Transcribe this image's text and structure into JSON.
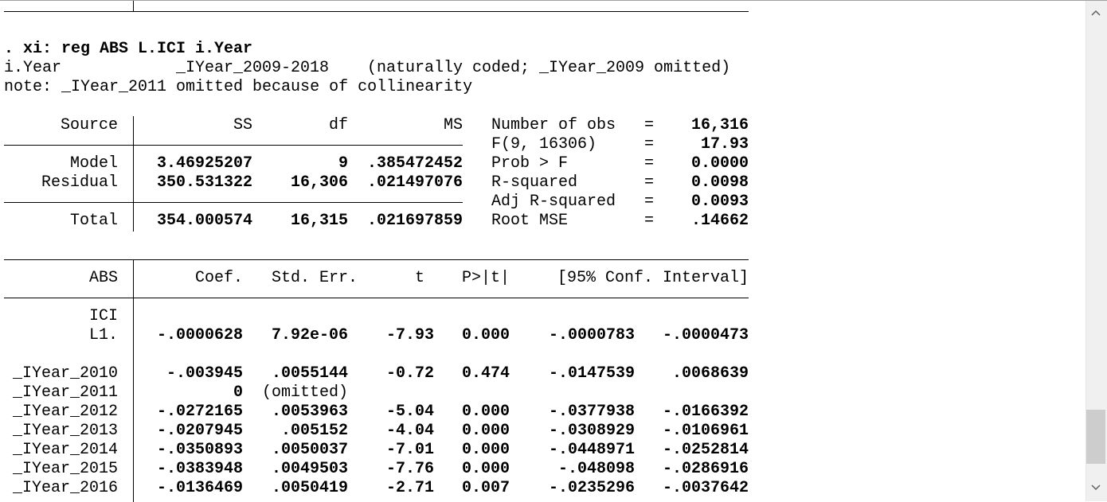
{
  "command": ". xi: reg ABS L.ICI i.Year",
  "xi_line": {
    "var": "i.Year",
    "dummies": "_IYear_2009-2018",
    "coding": "(naturally coded; _IYear_2009 omitted)"
  },
  "note": "note: _IYear_2011 omitted because of collinearity",
  "anova": {
    "header": [
      "Source",
      "SS",
      "df",
      "MS"
    ],
    "rows": [
      [
        "Model",
        "3.46925207",
        "9",
        ".385472452"
      ],
      [
        "Residual",
        "350.531322",
        "16,306",
        ".021497076"
      ],
      [
        "Total",
        "354.000574",
        "16,315",
        ".021697859"
      ]
    ]
  },
  "stats": [
    [
      "Number of obs",
      "=",
      "16,316"
    ],
    [
      "F(9, 16306)",
      "=",
      "17.93"
    ],
    [
      "Prob > F",
      "=",
      "0.0000"
    ],
    [
      "R-squared",
      "=",
      "0.0098"
    ],
    [
      "Adj R-squared",
      "=",
      "0.0093"
    ],
    [
      "Root MSE",
      "=",
      ".14662"
    ]
  ],
  "coef_table": {
    "header": [
      "ABS",
      "Coef.",
      "Std. Err.",
      "t",
      "P>|t|",
      "[95% Conf. Interval]"
    ],
    "rows": [
      [
        "ICI"
      ],
      [
        "L1.",
        "-.0000628",
        "7.92e-06",
        "-7.93",
        "0.000",
        "-.0000783",
        "-.0000473"
      ],
      [
        "_IYear_2010",
        "-.003945",
        ".0055144",
        "-0.72",
        "0.474",
        "-.0147539",
        ".0068639"
      ],
      [
        "_IYear_2011",
        "0",
        "(omitted)"
      ],
      [
        "_IYear_2012",
        "-.0272165",
        ".0053963",
        "-5.04",
        "0.000",
        "-.0377938",
        "-.0166392"
      ],
      [
        "_IYear_2013",
        "-.0207945",
        ".005152",
        "-4.04",
        "0.000",
        "-.0308929",
        "-.0106961"
      ],
      [
        "_IYear_2014",
        "-.0350893",
        ".0050037",
        "-7.01",
        "0.000",
        "-.0448971",
        "-.0252814"
      ],
      [
        "_IYear_2015",
        "-.0383948",
        ".0049503",
        "-7.76",
        "0.000",
        "-.048098",
        "-.0286916"
      ],
      [
        "_IYear_2016",
        "-.0136469",
        ".0050419",
        "-2.71",
        "0.007",
        "-.0235296",
        "-.0037642"
      ]
    ]
  }
}
